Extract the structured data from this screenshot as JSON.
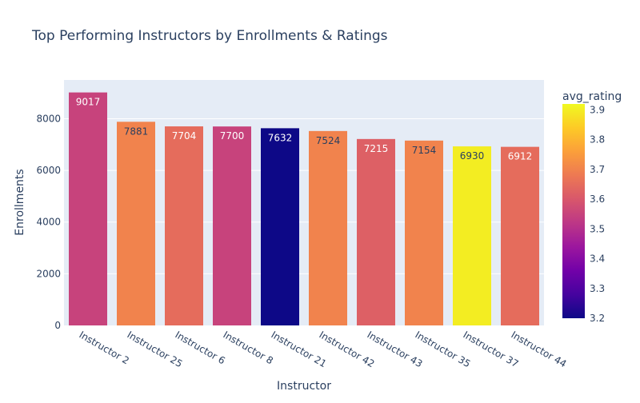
{
  "chart_data": {
    "type": "bar",
    "title": "Top Performing Instructors by Enrollments & Ratings",
    "xlabel": "Instructor",
    "ylabel": "Enrollments",
    "ylim": [
      0,
      9500
    ],
    "yticks": [
      0,
      2000,
      4000,
      6000,
      8000
    ],
    "categories": [
      "Instructor 2",
      "Instructor 25",
      "Instructor 6",
      "Instructor 8",
      "Instructor 21",
      "Instructor 42",
      "Instructor 43",
      "Instructor 35",
      "Instructor 37",
      "Instructor 44"
    ],
    "values": [
      9017,
      7881,
      7704,
      7700,
      7632,
      7524,
      7215,
      7154,
      6930,
      6912
    ],
    "color_values": [
      3.55,
      3.7,
      3.65,
      3.55,
      3.2,
      3.7,
      3.62,
      3.7,
      3.9,
      3.65
    ],
    "colorbar": {
      "title": "avg_rating",
      "range": [
        3.2,
        3.92
      ],
      "ticks": [
        3.2,
        3.3,
        3.4,
        3.5,
        3.6,
        3.7,
        3.8,
        3.9
      ],
      "tick_labels": [
        "3.2",
        "3.3",
        "3.4",
        "3.5",
        "3.6",
        "3.7",
        "3.8",
        "3.9"
      ]
    },
    "grid": true,
    "colorscale": [
      "#0d0887",
      "#46039f",
      "#7201a8",
      "#9c179e",
      "#bd3786",
      "#d8576b",
      "#ed7953",
      "#fb9f3a",
      "#fdca26",
      "#f0f921"
    ],
    "plot_background": "#e5ecf6"
  }
}
